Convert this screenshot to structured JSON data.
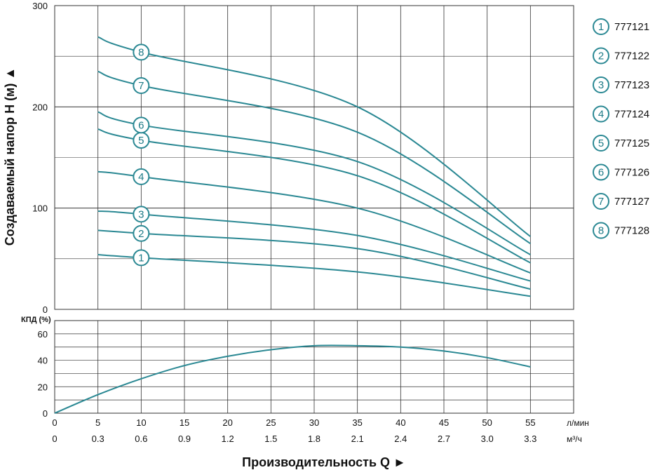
{
  "chart_data": [
    {
      "type": "line",
      "title": "",
      "ylabel": "Создаваемый напор H (м) ▲",
      "ylim": [
        0,
        300
      ],
      "y_ticks": [
        "0",
        "100",
        "200",
        "300"
      ],
      "y_tick_values": [
        0,
        100,
        200,
        300
      ],
      "x_units": "л/мин",
      "x_values": [
        5,
        10,
        15,
        20,
        25,
        30,
        35,
        40,
        45,
        50,
        55
      ],
      "series": [
        {
          "name": "1",
          "model": "777121",
          "points": [
            [
              5,
              54
            ],
            [
              10,
              51
            ],
            [
              35,
              37
            ],
            [
              55,
              13
            ]
          ]
        },
        {
          "name": "2",
          "model": "777122",
          "points": [
            [
              5,
              78
            ],
            [
              10,
              75
            ],
            [
              35,
              60
            ],
            [
              55,
              20
            ]
          ]
        },
        {
          "name": "3",
          "model": "777123",
          "points": [
            [
              5,
              97
            ],
            [
              10,
              94
            ],
            [
              35,
              73
            ],
            [
              55,
              28
            ]
          ]
        },
        {
          "name": "4",
          "model": "777124",
          "points": [
            [
              5,
              136
            ],
            [
              10,
              131
            ],
            [
              35,
              100
            ],
            [
              55,
              36
            ]
          ]
        },
        {
          "name": "5",
          "model": "777125",
          "points": [
            [
              5,
              178
            ],
            [
              10,
              167
            ],
            [
              35,
              132
            ],
            [
              55,
              46
            ]
          ]
        },
        {
          "name": "6",
          "model": "777126",
          "points": [
            [
              5,
              195
            ],
            [
              10,
              182
            ],
            [
              35,
              146
            ],
            [
              55,
              54
            ]
          ]
        },
        {
          "name": "7",
          "model": "777127",
          "points": [
            [
              5,
              235
            ],
            [
              10,
              221
            ],
            [
              35,
              175
            ],
            [
              55,
              65
            ]
          ]
        },
        {
          "name": "8",
          "model": "777128",
          "points": [
            [
              5,
              269
            ],
            [
              10,
              254
            ],
            [
              35,
              200
            ],
            [
              55,
              72
            ]
          ]
        }
      ],
      "label_x": 10
    },
    {
      "type": "line",
      "ylabel": "КПД (%)",
      "ylim": [
        0,
        70
      ],
      "y_ticks": [
        "0",
        "20",
        "40",
        "60"
      ],
      "y_tick_values": [
        0,
        20,
        40,
        60
      ],
      "series": [
        {
          "name": "КПД",
          "points": [
            [
              0,
              0
            ],
            [
              5,
              14
            ],
            [
              10,
              26
            ],
            [
              15,
              36
            ],
            [
              20,
              43
            ],
            [
              25,
              48
            ],
            [
              30,
              51
            ],
            [
              35,
              51
            ],
            [
              40,
              50
            ],
            [
              45,
              47
            ],
            [
              50,
              42
            ],
            [
              55,
              35
            ]
          ]
        }
      ]
    }
  ],
  "x_axis": {
    "lmin_ticks": [
      "0",
      "5",
      "10",
      "15",
      "20",
      "25",
      "30",
      "35",
      "40",
      "45",
      "50",
      "55"
    ],
    "m3h_ticks": [
      "0",
      "0.3",
      "0.6",
      "0.9",
      "1.2",
      "1.5",
      "1.8",
      "2.1",
      "2.4",
      "2.7",
      "3.0",
      "3.3"
    ],
    "lmin_unit": "л/мин",
    "m3h_unit": "м³/ч",
    "title": "Производительность Q  ►"
  },
  "legend": [
    {
      "badge": "1",
      "model": "777121"
    },
    {
      "badge": "2",
      "model": "777122"
    },
    {
      "badge": "3",
      "model": "777123"
    },
    {
      "badge": "4",
      "model": "777124"
    },
    {
      "badge": "5",
      "model": "777125"
    },
    {
      "badge": "6",
      "model": "777126"
    },
    {
      "badge": "7",
      "model": "777127"
    },
    {
      "badge": "8",
      "model": "777128"
    }
  ],
  "colors": {
    "curve": "#2a8893",
    "badge": "#2a8893",
    "grid": "#333333"
  }
}
